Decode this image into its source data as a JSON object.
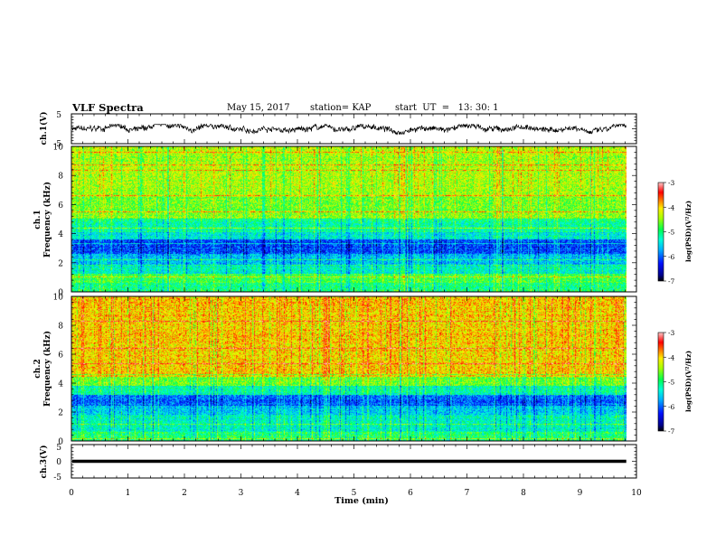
{
  "header": {
    "title": "VLF Spectra",
    "date": "May 15, 2017",
    "station": "station= KAP",
    "start": "start  UT  =   13: 30: 1"
  },
  "chart_data": [
    {
      "type": "line",
      "panel": "ch1-waveform",
      "ylabel": "ch.1(V)",
      "ylim": [
        -5,
        5
      ],
      "y_ticks": [
        "5",
        "-5"
      ],
      "xlim": [
        0,
        10
      ],
      "description_of_signal": "noisy waveform fluctuating roughly between -1.8 and 1.5 V across 0–9.8 min"
    },
    {
      "type": "heatmap",
      "panel": "ch1-spectrogram",
      "ylabel": "ch.1",
      "ylabel2": "Frequency (kHz)",
      "ylim": [
        0,
        10
      ],
      "y_ticks": [
        "0",
        "2",
        "4",
        "6",
        "8",
        "10"
      ],
      "xlim": [
        0,
        10
      ],
      "data_extent_min": 9.82,
      "colorbar": {
        "label": "log(PSD)(V²/Hz)",
        "range": [
          -7,
          -3
        ],
        "ticks": [
          "-3",
          "-4",
          "-5",
          "-6",
          "-7"
        ]
      },
      "bands_khz": [
        [
          0,
          0.6,
          -5.0
        ],
        [
          0.6,
          1.2,
          -4.8
        ],
        [
          1.2,
          1.8,
          -5.3
        ],
        [
          1.8,
          2.6,
          -5.6
        ],
        [
          2.6,
          3.6,
          -6.1
        ],
        [
          3.6,
          4.1,
          -5.4
        ],
        [
          4.1,
          5.0,
          -5.1
        ],
        [
          5.0,
          5.6,
          -4.5
        ],
        [
          5.6,
          6.5,
          -4.6
        ],
        [
          6.5,
          10.0,
          -4.4
        ]
      ]
    },
    {
      "type": "heatmap",
      "panel": "ch2-spectrogram",
      "ylabel": "ch.2",
      "ylabel2": "Frequency (kHz)",
      "ylim": [
        0,
        10
      ],
      "y_ticks": [
        "0",
        "2",
        "4",
        "6",
        "8",
        "10"
      ],
      "xlim": [
        0,
        10
      ],
      "data_extent_min": 9.82,
      "colorbar": {
        "label": "log(PSD)(V²/Hz)",
        "range": [
          -7,
          -3
        ],
        "ticks": [
          "-3",
          "-4",
          "-5",
          "-6",
          "-7"
        ]
      },
      "bands_khz": [
        [
          0,
          0.6,
          -5.0
        ],
        [
          0.6,
          1.8,
          -5.3
        ],
        [
          1.8,
          2.4,
          -5.6
        ],
        [
          2.4,
          3.2,
          -6.0
        ],
        [
          3.2,
          3.8,
          -5.2
        ],
        [
          3.8,
          4.6,
          -4.6
        ],
        [
          4.6,
          10.0,
          -4.0
        ]
      ]
    },
    {
      "type": "line",
      "panel": "ch3-waveform",
      "ylabel": "ch.3(V)",
      "ylim": [
        -5,
        5
      ],
      "y_ticks": [
        "5",
        "0",
        "-5"
      ],
      "xlim": [
        0,
        10
      ],
      "constant_level_v": 0,
      "x_ticks": [
        "0",
        "1",
        "2",
        "3",
        "4",
        "5",
        "6",
        "7",
        "8",
        "9",
        "10"
      ],
      "xlabel": "Time (min)"
    }
  ]
}
